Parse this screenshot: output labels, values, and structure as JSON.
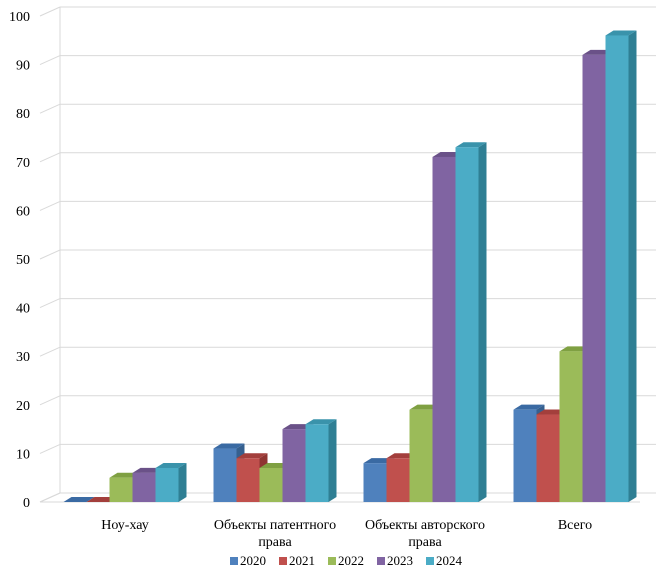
{
  "chart_data": {
    "type": "bar",
    "title": "",
    "xlabel": "",
    "ylabel": "",
    "categories": [
      [
        "Ноу-хау"
      ],
      [
        "Объекты патентного",
        "права"
      ],
      [
        "Объекты авторского",
        "права"
      ],
      [
        "Всего"
      ]
    ],
    "series": [
      {
        "name": "2020",
        "color": "#4f81bd",
        "side": "#36608f",
        "top": "#3a6aa3",
        "values": [
          0,
          11,
          8,
          19
        ]
      },
      {
        "name": "2021",
        "color": "#c0504d",
        "side": "#8f3532",
        "top": "#a33f3c",
        "values": [
          0,
          9,
          9,
          18
        ]
      },
      {
        "name": "2022",
        "color": "#9bbb59",
        "side": "#6f8a3a",
        "top": "#7fa042",
        "values": [
          5,
          7,
          19,
          31
        ]
      },
      {
        "name": "2023",
        "color": "#8064a2",
        "side": "#5a4578",
        "top": "#6a5188",
        "values": [
          6,
          15,
          71,
          92
        ]
      },
      {
        "name": "2024",
        "color": "#4bacc6",
        "side": "#2f7f94",
        "top": "#3a93ab",
        "values": [
          7,
          16,
          73,
          96
        ]
      }
    ],
    "ylim": [
      0,
      100
    ],
    "yticks": [
      0,
      10,
      20,
      30,
      40,
      50,
      60,
      70,
      80,
      90,
      100
    ],
    "grid": true,
    "legend": "bottom"
  }
}
